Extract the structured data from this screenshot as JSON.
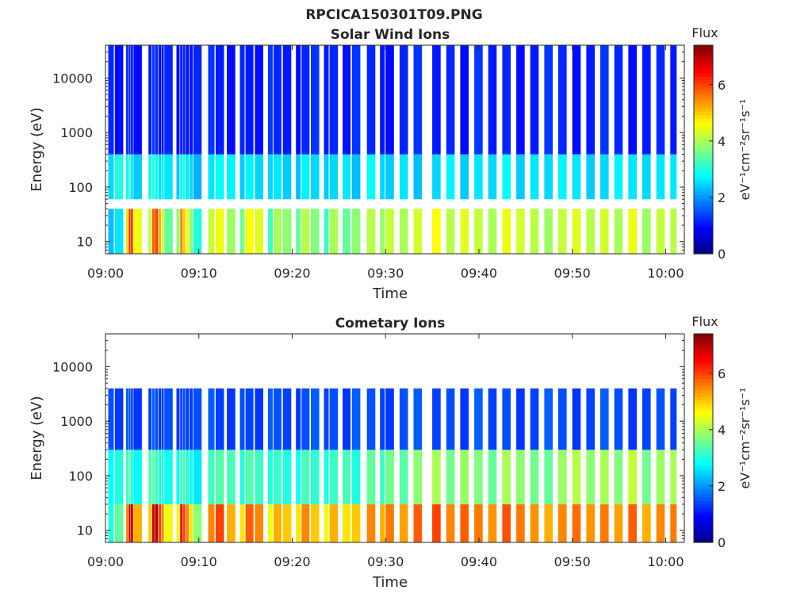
{
  "figure": {
    "title": "RPCICA150301T09.PNG",
    "colors": {
      "text": "#262626",
      "axis": "#262626",
      "colormap": "jet"
    }
  },
  "chart_data": [
    {
      "type": "heatmap",
      "title": "Solar Wind Ions",
      "xlabel": "Time",
      "ylabel": "Energy (eV)",
      "yscale": "log",
      "xlim": [
        "09:00",
        "10:02"
      ],
      "ylim": [
        6,
        40000
      ],
      "xticks": [
        "09:00",
        "09:10",
        "09:20",
        "09:30",
        "09:40",
        "09:50",
        "10:00"
      ],
      "yticks": [
        {
          "value": 10,
          "label": "10"
        },
        {
          "value": 100,
          "label": "100"
        },
        {
          "value": 1000,
          "label": "1000"
        },
        {
          "value": 10000,
          "label": "10000"
        }
      ],
      "colorbar": {
        "title": "Flux",
        "label": "eV⁻¹cm⁻²sr⁻¹s⁻¹",
        "range": [
          0,
          7.4
        ],
        "ticks": [
          {
            "value": 0,
            "label": "0"
          },
          {
            "value": 2,
            "label": "2"
          },
          {
            "value": 4,
            "label": "4"
          },
          {
            "value": 6,
            "label": "6"
          }
        ]
      },
      "grid": false,
      "time_steps_minutes": [
        0.3,
        1.0,
        2.2,
        2.5,
        2.7,
        3.0,
        4.6,
        5.0,
        5.3,
        5.7,
        6.0,
        6.3,
        7.6,
        8.0,
        8.3,
        8.6,
        9.0,
        9.4,
        11.0,
        11.8,
        13.0,
        14.4,
        15.0,
        16.0,
        17.4,
        18.0,
        19.0,
        20.4,
        21.0,
        22.0,
        23.4,
        24.0,
        25.4,
        26.4,
        28.0,
        29.4,
        30.0,
        31.5,
        33.0,
        35.0,
        36.5,
        38.0,
        39.5,
        41.0,
        42.5,
        44.0,
        45.5,
        47.0,
        48.5,
        50.0,
        51.5,
        53.0,
        54.5,
        56.0,
        57.5,
        59.0,
        60.5
      ],
      "spectra": [
        {
          "band": [
            4,
            40
          ],
          "levels": [
            2.3,
            2.6,
            4.8,
            6.2,
            6.0,
            4.5,
            4.2,
            5.8,
            6.0,
            5.2,
            4.3,
            3.5,
            3.8,
            5.5,
            5.0,
            4.5,
            3.8,
            3.0,
            4.2,
            4.5,
            3.9,
            3.6,
            4.6,
            4.4,
            3.2,
            4.0,
            3.8,
            3.5,
            4.1,
            3.7,
            3.2,
            4.0,
            3.5,
            3.8,
            4.1,
            3.9,
            4.2,
            4.0,
            4.3,
            4.6,
            4.1,
            4.4,
            4.2,
            4.0,
            4.5,
            4.3,
            4.1,
            3.9,
            4.2,
            4.4,
            4.1,
            4.3,
            4.0,
            4.5,
            3.9,
            4.2,
            4.1
          ]
        },
        {
          "band": [
            60,
            400
          ],
          "levels": [
            2.5,
            3.0,
            2.8,
            3.2,
            2.6,
            2.4,
            2.9,
            3.1,
            2.8,
            2.5,
            2.7,
            2.6,
            2.4,
            2.8,
            3.0,
            2.6,
            2.5,
            2.2,
            2.6,
            2.8,
            2.7,
            2.4,
            2.7,
            2.5,
            2.5,
            2.6,
            2.4,
            2.3,
            2.7,
            2.5,
            2.4,
            2.5,
            2.6,
            2.3,
            2.8,
            2.5,
            2.4,
            2.6,
            2.3,
            2.5,
            2.7,
            2.4,
            2.6,
            2.5,
            2.8,
            2.4,
            2.6,
            2.5,
            2.7,
            2.6,
            2.4,
            2.5,
            2.7,
            2.6,
            2.5,
            2.6,
            2.6
          ]
        },
        {
          "band": [
            400,
            40000
          ],
          "levels": [
            1.2,
            1.0,
            1.3,
            1.1,
            1.2,
            1.0,
            1.1,
            1.3,
            1.2,
            1.0,
            1.1,
            1.2,
            1.0,
            1.1,
            1.2,
            1.0,
            1.1,
            1.2,
            1.3,
            1.1,
            1.0,
            1.2,
            1.1,
            1.0,
            1.3,
            1.2,
            1.1,
            1.0,
            1.2,
            1.3,
            1.1,
            1.2,
            1.0,
            1.3,
            1.2,
            1.1,
            1.0,
            1.2,
            1.3,
            1.1,
            1.2,
            1.0,
            1.3,
            1.1,
            1.2,
            1.0,
            1.1,
            1.3,
            1.2,
            1.0,
            1.1,
            1.3,
            1.2,
            1.0,
            1.1,
            1.2,
            1.1
          ]
        }
      ]
    },
    {
      "type": "heatmap",
      "title": "Cometary Ions",
      "xlabel": "Time",
      "ylabel": "Energy (eV)",
      "yscale": "log",
      "xlim": [
        "09:00",
        "10:02"
      ],
      "ylim": [
        6,
        40000
      ],
      "xticks": [
        "09:00",
        "09:10",
        "09:20",
        "09:30",
        "09:40",
        "09:50",
        "10:00"
      ],
      "yticks": [
        {
          "value": 10,
          "label": "10"
        },
        {
          "value": 100,
          "label": "100"
        },
        {
          "value": 1000,
          "label": "1000"
        },
        {
          "value": 10000,
          "label": "10000"
        }
      ],
      "colorbar": {
        "title": "Flux",
        "label": "eV⁻¹cm⁻²sr⁻¹s⁻¹",
        "range": [
          0,
          7.4
        ],
        "ticks": [
          {
            "value": 0,
            "label": "0"
          },
          {
            "value": 2,
            "label": "2"
          },
          {
            "value": 4,
            "label": "4"
          },
          {
            "value": 6,
            "label": "6"
          }
        ]
      },
      "grid": false,
      "time_steps_minutes": [
        0.3,
        1.0,
        2.2,
        2.5,
        2.7,
        3.0,
        4.6,
        5.0,
        5.3,
        5.7,
        6.0,
        6.3,
        7.6,
        8.0,
        8.3,
        8.6,
        9.0,
        9.4,
        11.0,
        11.8,
        13.0,
        14.4,
        15.0,
        16.0,
        17.4,
        18.0,
        19.0,
        20.4,
        21.0,
        22.0,
        23.4,
        24.0,
        25.4,
        26.4,
        28.0,
        29.4,
        30.0,
        31.5,
        33.0,
        35.0,
        36.5,
        38.0,
        39.5,
        41.0,
        42.5,
        44.0,
        45.5,
        47.0,
        48.5,
        50.0,
        51.5,
        53.0,
        54.5,
        56.0,
        57.5,
        59.0,
        60.5
      ],
      "spectra": [
        {
          "band": [
            6,
            30
          ],
          "levels": [
            3.0,
            3.5,
            5.5,
            7.0,
            6.8,
            5.2,
            5.0,
            6.8,
            7.0,
            6.0,
            5.5,
            4.5,
            4.5,
            6.5,
            6.0,
            5.5,
            4.8,
            3.8,
            5.5,
            6.0,
            5.2,
            4.8,
            5.8,
            5.5,
            4.5,
            5.2,
            5.0,
            4.8,
            5.5,
            5.0,
            4.5,
            5.2,
            4.8,
            5.0,
            5.5,
            5.2,
            5.6,
            5.3,
            5.8,
            6.0,
            5.5,
            5.8,
            5.6,
            5.4,
            5.9,
            5.6,
            5.4,
            5.2,
            5.5,
            5.7,
            5.4,
            5.6,
            5.3,
            5.8,
            5.2,
            5.5,
            5.6
          ]
        },
        {
          "band": [
            30,
            300
          ],
          "levels": [
            2.8,
            3.0,
            3.2,
            3.5,
            3.0,
            2.8,
            3.3,
            3.5,
            3.2,
            3.0,
            3.1,
            2.9,
            2.8,
            3.2,
            3.4,
            3.0,
            2.9,
            2.6,
            3.2,
            3.4,
            3.3,
            3.0,
            3.4,
            3.2,
            3.0,
            3.2,
            3.0,
            2.9,
            3.3,
            3.1,
            3.0,
            3.2,
            3.3,
            3.0,
            3.5,
            3.2,
            3.6,
            3.4,
            3.8,
            4.0,
            3.6,
            3.9,
            3.7,
            3.5,
            4.0,
            3.8,
            3.6,
            3.5,
            3.9,
            4.1,
            3.8,
            4.0,
            3.7,
            4.2,
            3.6,
            3.9,
            4.0
          ]
        },
        {
          "band": [
            300,
            4000
          ],
          "levels": [
            1.5,
            1.3,
            1.6,
            1.4,
            1.5,
            1.3,
            1.4,
            1.6,
            1.5,
            1.3,
            1.4,
            1.5,
            1.3,
            1.4,
            1.5,
            1.3,
            1.4,
            1.5,
            1.6,
            1.4,
            1.3,
            1.5,
            1.4,
            1.3,
            1.6,
            1.5,
            1.4,
            1.3,
            1.5,
            1.6,
            1.4,
            1.5,
            1.3,
            1.6,
            1.5,
            1.4,
            1.3,
            1.5,
            1.6,
            1.4,
            1.5,
            1.3,
            1.6,
            1.4,
            1.5,
            1.3,
            1.4,
            1.6,
            1.5,
            1.3,
            1.4,
            1.6,
            1.5,
            1.3,
            1.4,
            1.5,
            1.4
          ]
        }
      ]
    }
  ]
}
